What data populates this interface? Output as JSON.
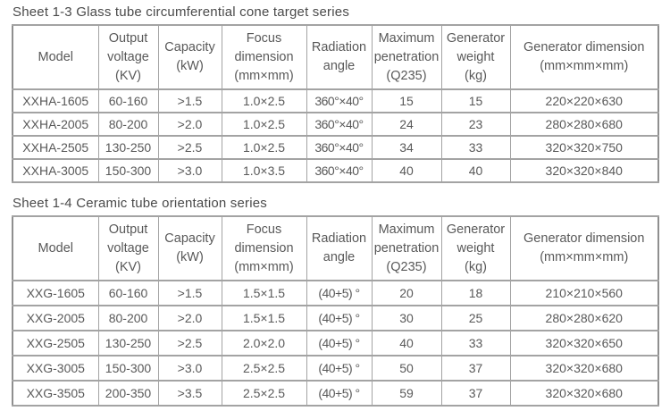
{
  "page": {
    "background": "#ffffff",
    "border_color": "#a3a3a3",
    "text_color": "#595959",
    "title_color": "#4a4a4a"
  },
  "tables": [
    {
      "title": "Sheet 1-3 Glass tube circumferential cone target series",
      "headers": [
        "Model",
        "Output\nvoltage\n(KV)",
        "Capacity\n(kW)",
        "Focus\ndimension\n(mm×mm)",
        "Radiation\nangle",
        "Maximum\npenetration\n(Q235)",
        "Generator\nweight\n(kg)",
        "Generator dimension\n(mm×mm×mm)"
      ],
      "rows": [
        [
          "XXHA-1605",
          "60-160",
          ">1.5",
          "1.0×2.5",
          "360°×40°",
          "15",
          "15",
          "220×220×630"
        ],
        [
          "XXHA-2005",
          "80-200",
          ">2.0",
          "1.0×2.5",
          "360°×40°",
          "24",
          "23",
          "280×280×680"
        ],
        [
          "XXHA-2505",
          "130-250",
          ">2.5",
          "1.0×2.5",
          "360°×40°",
          "34",
          "33",
          "320×320×750"
        ],
        [
          "XXHA-3005",
          "150-300",
          ">3.0",
          "1.0×3.5",
          "360°×40°",
          "40",
          "40",
          "320×320×840"
        ]
      ]
    },
    {
      "title": "Sheet 1-4 Ceramic tube orientation series",
      "headers": [
        "Model",
        "Output\nvoltage\n(KV)",
        "Capacity\n(kW)",
        "Focus\ndimension\n(mm×mm)",
        "Radiation\nangle",
        "Maximum\npenetration\n(Q235)",
        "Generator\nweight\n(kg)",
        "Generator dimension\n(mm×mm×mm)"
      ],
      "rows": [
        [
          "XXG-1605",
          "60-160",
          ">1.5",
          "1.5×1.5",
          "(40+5) °",
          "20",
          "18",
          "210×210×560"
        ],
        [
          "XXG-2005",
          "80-200",
          ">2.0",
          "1.5×1.5",
          "(40+5) °",
          "30",
          "25",
          "280×280×620"
        ],
        [
          "XXG-2505",
          "130-250",
          ">2.5",
          "2.0×2.0",
          "(40+5) °",
          "40",
          "33",
          "320×320×650"
        ],
        [
          "XXG-3005",
          "150-300",
          ">3.0",
          "2.5×2.5",
          "(40+5) °",
          "50",
          "37",
          "320×320×680"
        ],
        [
          "XXG-3505",
          "200-350",
          ">3.5",
          "2.5×2.5",
          "(40+5) °",
          "59",
          "37",
          "320×320×680"
        ]
      ]
    }
  ]
}
